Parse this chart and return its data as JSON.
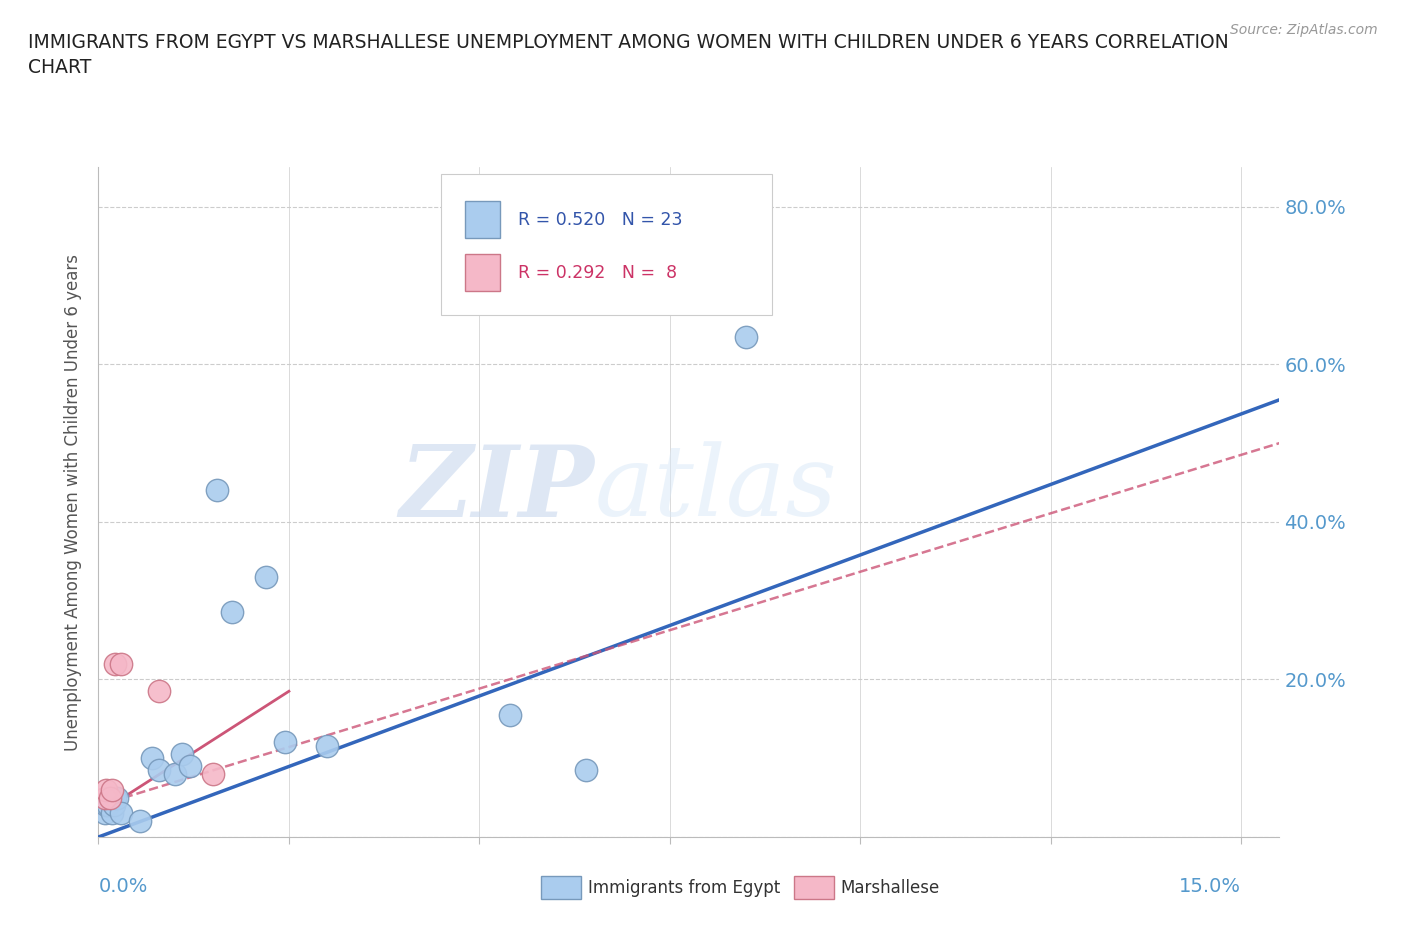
{
  "title": "IMMIGRANTS FROM EGYPT VS MARSHALLESE UNEMPLOYMENT AMONG WOMEN WITH CHILDREN UNDER 6 YEARS CORRELATION\nCHART",
  "source": "Source: ZipAtlas.com",
  "ylabel": "Unemployment Among Women with Children Under 6 years",
  "watermark_zip": "ZIP",
  "watermark_atlas": "atlas",
  "blue_points": [
    [
      0.0008,
      0.03
    ],
    [
      0.001,
      0.04
    ],
    [
      0.0012,
      0.04
    ],
    [
      0.0015,
      0.05
    ],
    [
      0.0018,
      0.03
    ],
    [
      0.002,
      0.04
    ],
    [
      0.0022,
      0.05
    ],
    [
      0.0025,
      0.05
    ],
    [
      0.003,
      0.03
    ],
    [
      0.0055,
      0.02
    ],
    [
      0.007,
      0.1
    ],
    [
      0.008,
      0.085
    ],
    [
      0.01,
      0.08
    ],
    [
      0.011,
      0.105
    ],
    [
      0.012,
      0.09
    ],
    [
      0.0155,
      0.44
    ],
    [
      0.0175,
      0.285
    ],
    [
      0.022,
      0.33
    ],
    [
      0.0245,
      0.12
    ],
    [
      0.03,
      0.115
    ],
    [
      0.054,
      0.155
    ],
    [
      0.064,
      0.085
    ],
    [
      0.085,
      0.635
    ]
  ],
  "pink_points": [
    [
      0.0008,
      0.05
    ],
    [
      0.001,
      0.06
    ],
    [
      0.0015,
      0.05
    ],
    [
      0.0018,
      0.06
    ],
    [
      0.0022,
      0.22
    ],
    [
      0.003,
      0.22
    ],
    [
      0.008,
      0.185
    ],
    [
      0.015,
      0.08
    ]
  ],
  "blue_color": "#aaccee",
  "blue_edge_color": "#7799bb",
  "pink_color": "#f5b8c8",
  "pink_edge_color": "#cc7788",
  "blue_line_color": "#3366bb",
  "pink_line_color": "#cc5577",
  "grid_color": "#cccccc",
  "axis_label_color": "#5599cc",
  "title_color": "#222222",
  "ylim": [
    0.0,
    0.85
  ],
  "xlim": [
    0.0,
    0.155
  ],
  "yticks": [
    0.0,
    0.2,
    0.4,
    0.6,
    0.8
  ],
  "ytick_labels": [
    "",
    "20.0%",
    "40.0%",
    "60.0%",
    "80.0%"
  ],
  "xtick_positions": [
    0.0,
    0.025,
    0.05,
    0.075,
    0.1,
    0.125,
    0.15
  ],
  "background_color": "#ffffff",
  "blue_trend": [
    0.0,
    0.155,
    0.0,
    0.555
  ],
  "pink_trend": [
    0.0,
    0.155,
    0.04,
    0.5
  ]
}
